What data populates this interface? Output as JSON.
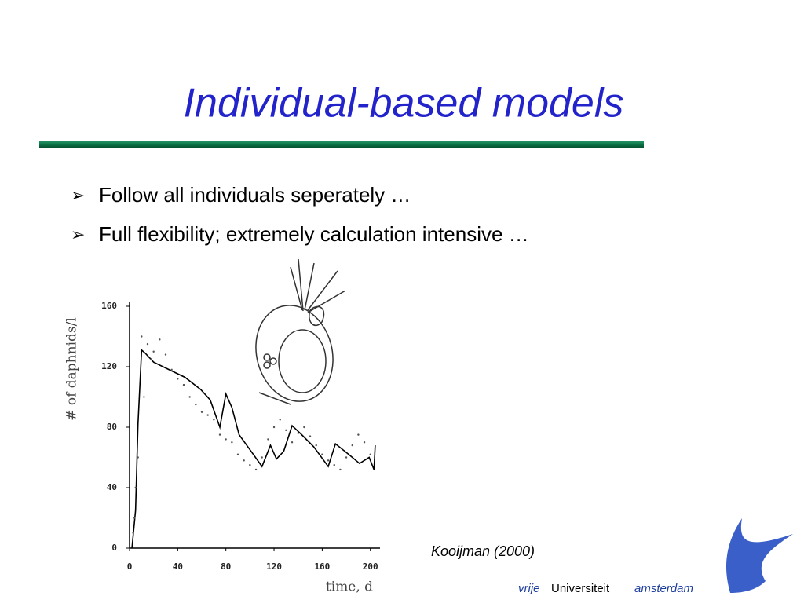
{
  "title": "Individual-based models",
  "bullets": [
    "Follow all individuals seperately …",
    "Full flexibility; extremely calculation intensive …"
  ],
  "citation": "Kooijman (2000)",
  "logo": {
    "vrije": "vrije",
    "universiteit": "Universiteit",
    "amsterdam": "amsterdam"
  },
  "chart_data": {
    "type": "line",
    "xlabel": "time, d",
    "ylabel": "# of daphnids/l",
    "xlim": [
      0,
      208
    ],
    "ylim": [
      0,
      160
    ],
    "xticks": [
      0,
      40,
      80,
      120,
      160,
      200
    ],
    "yticks": [
      0,
      40,
      80,
      120,
      160
    ],
    "series": [
      {
        "style": "line",
        "color": "#000000",
        "x": [
          2,
          5,
          7,
          10,
          13,
          20,
          33,
          46,
          59,
          67,
          75,
          80,
          85,
          91,
          101,
          110,
          117,
          122,
          128,
          135,
          143,
          153,
          165,
          171,
          182,
          191,
          199,
          203,
          204
        ],
        "values": [
          0,
          25,
          82,
          131,
          129,
          123,
          118,
          113,
          105,
          98,
          80,
          102,
          93,
          75,
          64,
          54,
          68,
          59,
          64,
          81,
          75,
          67,
          54,
          69,
          62,
          56,
          60,
          52,
          68
        ]
      },
      {
        "style": "points",
        "color": "#555555",
        "x": [
          3,
          4,
          5,
          7,
          10,
          12,
          15,
          18,
          20,
          25,
          30,
          35,
          40,
          45,
          50,
          55,
          60,
          65,
          70,
          75,
          80,
          85,
          90,
          95,
          100,
          105,
          110,
          115,
          120,
          125,
          130,
          135,
          140,
          145,
          150,
          155,
          160,
          165,
          170,
          175,
          180,
          185,
          190,
          195,
          200
        ],
        "values": [
          10,
          20,
          40,
          60,
          140,
          100,
          135,
          125,
          130,
          138,
          128,
          118,
          112,
          108,
          100,
          95,
          90,
          88,
          85,
          75,
          72,
          70,
          62,
          58,
          55,
          52,
          60,
          72,
          80,
          85,
          78,
          70,
          76,
          80,
          74,
          68,
          62,
          58,
          55,
          52,
          60,
          68,
          75,
          70,
          62
        ]
      }
    ]
  }
}
